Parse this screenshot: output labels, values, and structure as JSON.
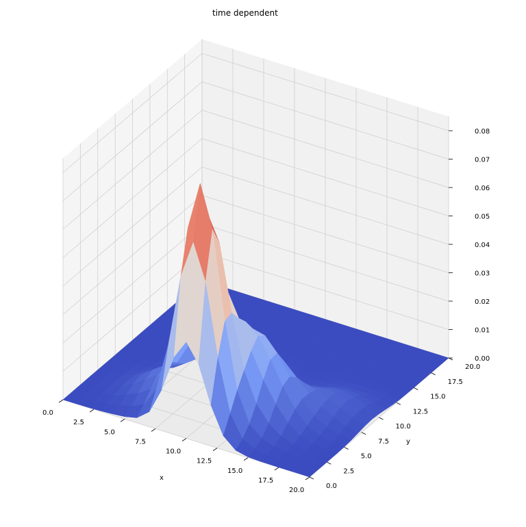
{
  "chart_data": {
    "type": "surface3d",
    "title": "time dependent",
    "xlabel": "x",
    "ylabel": "y",
    "zlabel": "",
    "xlim": [
      0,
      20
    ],
    "ylim": [
      0,
      20
    ],
    "zlim": [
      0,
      0.085
    ],
    "x_ticks": [
      "0.0",
      "2.5",
      "5.0",
      "7.5",
      "10.0",
      "12.5",
      "15.0",
      "17.5",
      "20.0"
    ],
    "y_ticks": [
      "0.0",
      "2.5",
      "5.0",
      "7.5",
      "10.0",
      "12.5",
      "15.0",
      "17.5",
      "20.0"
    ],
    "z_ticks": [
      "0.00",
      "0.01",
      "0.02",
      "0.03",
      "0.04",
      "0.05",
      "0.06",
      "0.07",
      "0.08"
    ],
    "colormap": "coolwarm",
    "grid": true,
    "surface": {
      "x_range": [
        0,
        20
      ],
      "y_range": [
        0,
        20
      ],
      "grid_points": 21,
      "peak": {
        "x": 10,
        "y": 2,
        "z": 0.082
      },
      "secondary_ridges": [
        {
          "x": 12,
          "y": 5,
          "z": 0.022
        },
        {
          "x": 9,
          "y": 8,
          "z": 0.018
        },
        {
          "x": 14,
          "y": 6,
          "z": 0.012
        },
        {
          "x": 6,
          "y": 4,
          "z": 0.01
        },
        {
          "x": 17,
          "y": 9,
          "z": 0.006
        }
      ],
      "baseline_z": 0.0
    }
  }
}
